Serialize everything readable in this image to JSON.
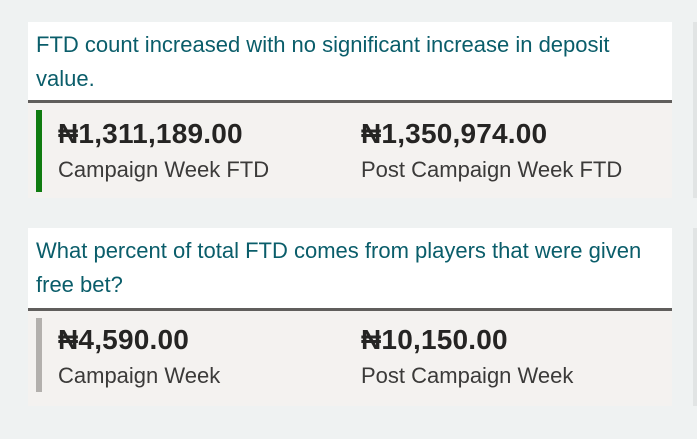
{
  "cards": [
    {
      "title": "FTD count increased with no significant increase in deposit value.",
      "accent_color": "#107c10",
      "kpis": [
        {
          "value": "₦1,311,189.00",
          "label": "Campaign Week FTD"
        },
        {
          "value": "₦1,350,974.00",
          "label": "Post Campaign Week FTD"
        }
      ]
    },
    {
      "title": "What percent of total FTD comes from players that were given free bet?",
      "accent_color": "#b3b0ad",
      "kpis": [
        {
          "value": "₦4,590.00",
          "label": "Campaign Week"
        },
        {
          "value": "₦10,150.00",
          "label": "Post Campaign Week"
        }
      ]
    }
  ],
  "colors": {
    "background": "#eff2f2",
    "title_text": "#0a5d6a",
    "divider": "#605e5c",
    "panel": "#f4f2f0"
  }
}
